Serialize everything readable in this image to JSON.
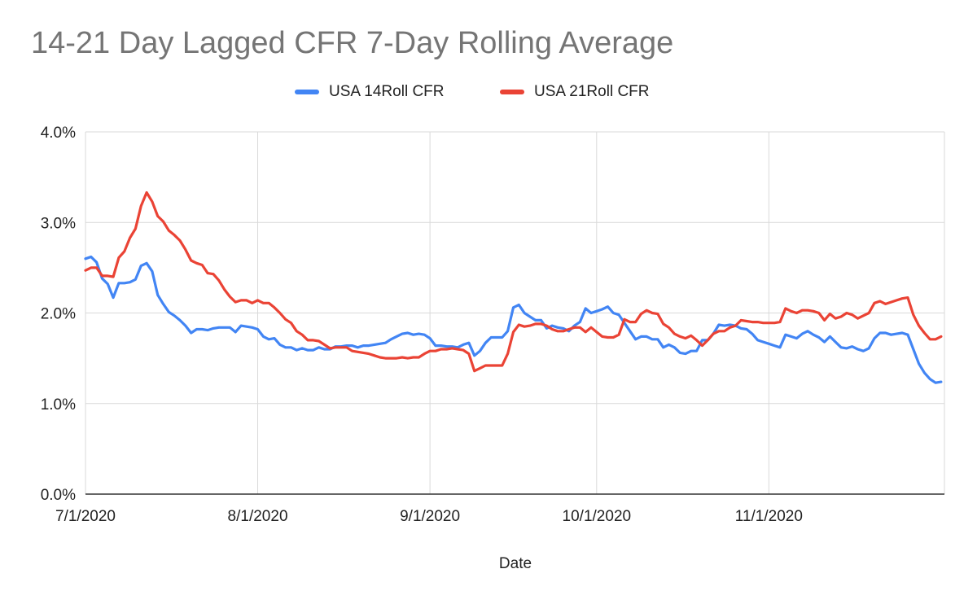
{
  "chart_data": {
    "type": "line",
    "title": "14-21 Day Lagged CFR 7-Day Rolling Average",
    "xlabel": "Date",
    "ylabel": "",
    "ylim": [
      0,
      4
    ],
    "y_ticks": [
      "0.0%",
      "1.0%",
      "2.0%",
      "3.0%",
      "4.0%"
    ],
    "y_tick_values": [
      0,
      1,
      2,
      3,
      4
    ],
    "x_ticks": [
      "7/1/2020",
      "8/1/2020",
      "9/1/2020",
      "10/1/2020",
      "11/1/2020"
    ],
    "x_tick_days": [
      0,
      31,
      62,
      92,
      123
    ],
    "x_range_days": [
      0,
      153
    ],
    "grid": true,
    "legend_position": "top-center",
    "series": [
      {
        "name": "USA 14Roll CFR",
        "color": "#4285F4",
        "points": [
          [
            0,
            2.6
          ],
          [
            1,
            2.62
          ],
          [
            2,
            2.56
          ],
          [
            3,
            2.38
          ],
          [
            4,
            2.32
          ],
          [
            5,
            2.17
          ],
          [
            6,
            2.33
          ],
          [
            7,
            2.33
          ],
          [
            8,
            2.34
          ],
          [
            9,
            2.37
          ],
          [
            10,
            2.52
          ],
          [
            11,
            2.55
          ],
          [
            12,
            2.46
          ],
          [
            13,
            2.2
          ],
          [
            14,
            2.1
          ],
          [
            15,
            2.01
          ],
          [
            16,
            1.97
          ],
          [
            17,
            1.92
          ],
          [
            18,
            1.86
          ],
          [
            19,
            1.78
          ],
          [
            20,
            1.82
          ],
          [
            21,
            1.82
          ],
          [
            22,
            1.81
          ],
          [
            23,
            1.83
          ],
          [
            24,
            1.84
          ],
          [
            25,
            1.84
          ],
          [
            26,
            1.84
          ],
          [
            27,
            1.79
          ],
          [
            28,
            1.86
          ],
          [
            29,
            1.85
          ],
          [
            30,
            1.84
          ],
          [
            31,
            1.82
          ],
          [
            32,
            1.74
          ],
          [
            33,
            1.71
          ],
          [
            34,
            1.72
          ],
          [
            35,
            1.65
          ],
          [
            36,
            1.62
          ],
          [
            37,
            1.62
          ],
          [
            38,
            1.59
          ],
          [
            39,
            1.61
          ],
          [
            40,
            1.59
          ],
          [
            41,
            1.59
          ],
          [
            42,
            1.62
          ],
          [
            43,
            1.6
          ],
          [
            44,
            1.6
          ],
          [
            45,
            1.63
          ],
          [
            46,
            1.63
          ],
          [
            47,
            1.64
          ],
          [
            48,
            1.64
          ],
          [
            49,
            1.62
          ],
          [
            50,
            1.64
          ],
          [
            51,
            1.64
          ],
          [
            52,
            1.65
          ],
          [
            53,
            1.66
          ],
          [
            54,
            1.67
          ],
          [
            55,
            1.71
          ],
          [
            56,
            1.74
          ],
          [
            57,
            1.77
          ],
          [
            58,
            1.78
          ],
          [
            59,
            1.76
          ],
          [
            60,
            1.77
          ],
          [
            61,
            1.76
          ],
          [
            62,
            1.72
          ],
          [
            63,
            1.64
          ],
          [
            64,
            1.64
          ],
          [
            65,
            1.63
          ],
          [
            66,
            1.63
          ],
          [
            67,
            1.62
          ],
          [
            68,
            1.65
          ],
          [
            69,
            1.67
          ],
          [
            70,
            1.53
          ],
          [
            71,
            1.58
          ],
          [
            72,
            1.67
          ],
          [
            73,
            1.73
          ],
          [
            74,
            1.73
          ],
          [
            75,
            1.73
          ],
          [
            76,
            1.8
          ],
          [
            77,
            2.06
          ],
          [
            78,
            2.09
          ],
          [
            79,
            2.0
          ],
          [
            80,
            1.96
          ],
          [
            81,
            1.92
          ],
          [
            82,
            1.92
          ],
          [
            83,
            1.83
          ],
          [
            84,
            1.86
          ],
          [
            85,
            1.84
          ],
          [
            86,
            1.83
          ],
          [
            87,
            1.8
          ],
          [
            88,
            1.86
          ],
          [
            89,
            1.9
          ],
          [
            90,
            2.05
          ],
          [
            91,
            2.0
          ],
          [
            92,
            2.02
          ],
          [
            93,
            2.04
          ],
          [
            94,
            2.07
          ],
          [
            95,
            2.0
          ],
          [
            96,
            1.98
          ],
          [
            97,
            1.89
          ],
          [
            98,
            1.8
          ],
          [
            99,
            1.71
          ],
          [
            100,
            1.74
          ],
          [
            101,
            1.74
          ],
          [
            102,
            1.71
          ],
          [
            103,
            1.71
          ],
          [
            104,
            1.62
          ],
          [
            105,
            1.65
          ],
          [
            106,
            1.62
          ],
          [
            107,
            1.56
          ],
          [
            108,
            1.55
          ],
          [
            109,
            1.58
          ],
          [
            110,
            1.58
          ],
          [
            111,
            1.7
          ],
          [
            112,
            1.7
          ],
          [
            113,
            1.77
          ],
          [
            114,
            1.87
          ],
          [
            115,
            1.86
          ],
          [
            116,
            1.87
          ],
          [
            117,
            1.86
          ],
          [
            118,
            1.83
          ],
          [
            119,
            1.82
          ],
          [
            120,
            1.77
          ],
          [
            121,
            1.7
          ],
          [
            122,
            1.68
          ],
          [
            123,
            1.66
          ],
          [
            124,
            1.64
          ],
          [
            125,
            1.62
          ],
          [
            126,
            1.76
          ],
          [
            127,
            1.74
          ],
          [
            128,
            1.72
          ],
          [
            129,
            1.77
          ],
          [
            130,
            1.8
          ],
          [
            131,
            1.76
          ],
          [
            132,
            1.73
          ],
          [
            133,
            1.68
          ],
          [
            134,
            1.74
          ],
          [
            135,
            1.68
          ],
          [
            136,
            1.62
          ],
          [
            137,
            1.61
          ],
          [
            138,
            1.63
          ],
          [
            139,
            1.6
          ],
          [
            140,
            1.58
          ],
          [
            141,
            1.61
          ],
          [
            142,
            1.72
          ],
          [
            143,
            1.78
          ],
          [
            144,
            1.78
          ],
          [
            145,
            1.76
          ],
          [
            146,
            1.77
          ],
          [
            147,
            1.78
          ],
          [
            148,
            1.76
          ],
          [
            149,
            1.6
          ],
          [
            150,
            1.44
          ],
          [
            151,
            1.34
          ],
          [
            152,
            1.27
          ],
          [
            153,
            1.23
          ],
          [
            154,
            1.24
          ]
        ]
      },
      {
        "name": "USA 21Roll CFR",
        "color": "#EA4335",
        "points": [
          [
            0,
            2.47
          ],
          [
            1,
            2.5
          ],
          [
            2,
            2.5
          ],
          [
            3,
            2.41
          ],
          [
            4,
            2.41
          ],
          [
            5,
            2.4
          ],
          [
            6,
            2.61
          ],
          [
            7,
            2.68
          ],
          [
            8,
            2.83
          ],
          [
            9,
            2.93
          ],
          [
            10,
            3.18
          ],
          [
            11,
            3.33
          ],
          [
            12,
            3.23
          ],
          [
            13,
            3.07
          ],
          [
            14,
            3.01
          ],
          [
            15,
            2.91
          ],
          [
            16,
            2.86
          ],
          [
            17,
            2.8
          ],
          [
            18,
            2.7
          ],
          [
            19,
            2.58
          ],
          [
            20,
            2.55
          ],
          [
            21,
            2.53
          ],
          [
            22,
            2.44
          ],
          [
            23,
            2.43
          ],
          [
            24,
            2.36
          ],
          [
            25,
            2.26
          ],
          [
            26,
            2.18
          ],
          [
            27,
            2.12
          ],
          [
            28,
            2.14
          ],
          [
            29,
            2.14
          ],
          [
            30,
            2.11
          ],
          [
            31,
            2.14
          ],
          [
            32,
            2.11
          ],
          [
            33,
            2.11
          ],
          [
            34,
            2.06
          ],
          [
            35,
            2.0
          ],
          [
            36,
            1.93
          ],
          [
            37,
            1.89
          ],
          [
            38,
            1.8
          ],
          [
            39,
            1.76
          ],
          [
            40,
            1.7
          ],
          [
            41,
            1.7
          ],
          [
            42,
            1.69
          ],
          [
            43,
            1.65
          ],
          [
            44,
            1.61
          ],
          [
            45,
            1.62
          ],
          [
            46,
            1.62
          ],
          [
            47,
            1.62
          ],
          [
            48,
            1.58
          ],
          [
            49,
            1.57
          ],
          [
            50,
            1.56
          ],
          [
            51,
            1.55
          ],
          [
            52,
            1.53
          ],
          [
            53,
            1.51
          ],
          [
            54,
            1.5
          ],
          [
            55,
            1.5
          ],
          [
            56,
            1.5
          ],
          [
            57,
            1.51
          ],
          [
            58,
            1.5
          ],
          [
            59,
            1.51
          ],
          [
            60,
            1.51
          ],
          [
            61,
            1.55
          ],
          [
            62,
            1.58
          ],
          [
            63,
            1.58
          ],
          [
            64,
            1.6
          ],
          [
            65,
            1.6
          ],
          [
            66,
            1.61
          ],
          [
            67,
            1.6
          ],
          [
            68,
            1.59
          ],
          [
            69,
            1.55
          ],
          [
            70,
            1.36
          ],
          [
            71,
            1.39
          ],
          [
            72,
            1.42
          ],
          [
            73,
            1.42
          ],
          [
            74,
            1.42
          ],
          [
            75,
            1.42
          ],
          [
            76,
            1.55
          ],
          [
            77,
            1.79
          ],
          [
            78,
            1.87
          ],
          [
            79,
            1.85
          ],
          [
            80,
            1.86
          ],
          [
            81,
            1.88
          ],
          [
            82,
            1.88
          ],
          [
            83,
            1.86
          ],
          [
            84,
            1.82
          ],
          [
            85,
            1.8
          ],
          [
            86,
            1.8
          ],
          [
            87,
            1.82
          ],
          [
            88,
            1.84
          ],
          [
            89,
            1.84
          ],
          [
            90,
            1.79
          ],
          [
            91,
            1.84
          ],
          [
            92,
            1.79
          ],
          [
            93,
            1.74
          ],
          [
            94,
            1.73
          ],
          [
            95,
            1.73
          ],
          [
            96,
            1.76
          ],
          [
            97,
            1.93
          ],
          [
            98,
            1.9
          ],
          [
            99,
            1.9
          ],
          [
            100,
            1.99
          ],
          [
            101,
            2.03
          ],
          [
            102,
            2.0
          ],
          [
            103,
            1.99
          ],
          [
            104,
            1.88
          ],
          [
            105,
            1.84
          ],
          [
            106,
            1.77
          ],
          [
            107,
            1.74
          ],
          [
            108,
            1.72
          ],
          [
            109,
            1.75
          ],
          [
            110,
            1.7
          ],
          [
            111,
            1.64
          ],
          [
            112,
            1.7
          ],
          [
            113,
            1.77
          ],
          [
            114,
            1.8
          ],
          [
            115,
            1.8
          ],
          [
            116,
            1.84
          ],
          [
            117,
            1.86
          ],
          [
            118,
            1.92
          ],
          [
            119,
            1.91
          ],
          [
            120,
            1.9
          ],
          [
            121,
            1.9
          ],
          [
            122,
            1.89
          ],
          [
            123,
            1.89
          ],
          [
            124,
            1.89
          ],
          [
            125,
            1.9
          ],
          [
            126,
            2.05
          ],
          [
            127,
            2.02
          ],
          [
            128,
            2.0
          ],
          [
            129,
            2.03
          ],
          [
            130,
            2.03
          ],
          [
            131,
            2.02
          ],
          [
            132,
            2.0
          ],
          [
            133,
            1.92
          ],
          [
            134,
            1.99
          ],
          [
            135,
            1.94
          ],
          [
            136,
            1.96
          ],
          [
            137,
            2.0
          ],
          [
            138,
            1.98
          ],
          [
            139,
            1.94
          ],
          [
            140,
            1.97
          ],
          [
            141,
            2.0
          ],
          [
            142,
            2.11
          ],
          [
            143,
            2.13
          ],
          [
            144,
            2.1
          ],
          [
            145,
            2.12
          ],
          [
            146,
            2.14
          ],
          [
            147,
            2.16
          ],
          [
            148,
            2.17
          ],
          [
            149,
            1.98
          ],
          [
            150,
            1.86
          ],
          [
            151,
            1.78
          ],
          [
            152,
            1.71
          ],
          [
            153,
            1.71
          ],
          [
            154,
            1.74
          ]
        ]
      }
    ]
  }
}
